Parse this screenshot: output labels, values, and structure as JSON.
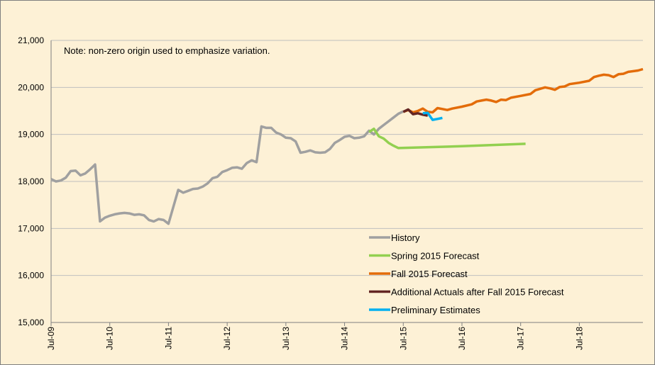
{
  "chart_data": {
    "type": "line",
    "annotation": "Note: non-zero origin used to emphasize variation.",
    "xlim": [
      0,
      121
    ],
    "xticks": [
      {
        "value": 0,
        "label": "Jul-09"
      },
      {
        "value": 12,
        "label": "Jul-10"
      },
      {
        "value": 24,
        "label": "Jul-11"
      },
      {
        "value": 36,
        "label": "Jul-12"
      },
      {
        "value": 48,
        "label": "Jul-13"
      },
      {
        "value": 60,
        "label": "Jul-14"
      },
      {
        "value": 72,
        "label": "Jul-15"
      },
      {
        "value": 84,
        "label": "Jul-16"
      },
      {
        "value": 96,
        "label": "Jul-17"
      },
      {
        "value": 108,
        "label": "Jul-18"
      }
    ],
    "ylim": [
      15000,
      21000
    ],
    "yticks": [
      {
        "value": 15000,
        "label": "15,000"
      },
      {
        "value": 16000,
        "label": "16,000"
      },
      {
        "value": 17000,
        "label": "17,000"
      },
      {
        "value": 18000,
        "label": "18,000"
      },
      {
        "value": 19000,
        "label": "19,000"
      },
      {
        "value": 20000,
        "label": "20,000"
      },
      {
        "value": 21000,
        "label": "21,000"
      }
    ],
    "grid": true,
    "legend": "lower right",
    "series": [
      {
        "name": "History",
        "color": "#a0a0a0",
        "x": [
          0,
          1,
          2,
          3,
          4,
          5,
          6,
          7,
          8,
          9,
          10,
          11,
          12,
          13,
          14,
          15,
          16,
          17,
          18,
          19,
          20,
          21,
          22,
          23,
          24,
          26,
          27,
          28,
          29,
          30,
          31,
          32,
          33,
          34,
          35,
          36,
          37,
          38,
          39,
          40,
          41,
          42,
          43,
          44,
          45,
          46,
          47,
          48,
          49,
          50,
          51,
          52,
          53,
          54,
          55,
          56,
          57,
          58,
          59,
          60,
          61,
          62,
          63,
          64,
          65,
          66,
          67,
          68,
          69,
          70,
          71,
          72
        ],
        "values": [
          18050,
          18000,
          18020,
          18080,
          18220,
          18230,
          18130,
          18170,
          18260,
          18360,
          17150,
          17230,
          17270,
          17300,
          17320,
          17330,
          17320,
          17290,
          17300,
          17280,
          17180,
          17150,
          17200,
          17180,
          17100,
          17820,
          17760,
          17800,
          17840,
          17850,
          17890,
          17960,
          18070,
          18100,
          18200,
          18240,
          18290,
          18300,
          18270,
          18390,
          18450,
          18410,
          19170,
          19140,
          19140,
          19040,
          19000,
          18930,
          18920,
          18850,
          18610,
          18630,
          18660,
          18620,
          18610,
          18620,
          18690,
          18820,
          18880,
          18950,
          18970,
          18920,
          18930,
          18960,
          19080,
          19000,
          19120,
          19200,
          19280,
          19360,
          19440,
          19490
        ]
      },
      {
        "name": "Spring 2015 Forecast",
        "color": "#92d050",
        "x": [
          65,
          66,
          67,
          68,
          69,
          70,
          71,
          84,
          97
        ],
        "values": [
          19050,
          19120,
          18960,
          18910,
          18820,
          18760,
          18710,
          18750,
          18800
        ]
      },
      {
        "name": "Fall 2015 Forecast",
        "color": "#e36c0a",
        "x": [
          72,
          73,
          74,
          75,
          76,
          77,
          78,
          79,
          80,
          81,
          82,
          84,
          86,
          87,
          88,
          89,
          90,
          91,
          92,
          93,
          94,
          96,
          98,
          99,
          100,
          101,
          102,
          103,
          104,
          105,
          106,
          108,
          110,
          111,
          112,
          113,
          114,
          115,
          116,
          117,
          118,
          120,
          121
        ],
        "values": [
          19480,
          19520,
          19470,
          19500,
          19550,
          19480,
          19470,
          19560,
          19540,
          19520,
          19550,
          19590,
          19640,
          19700,
          19720,
          19740,
          19720,
          19690,
          19740,
          19730,
          19780,
          19820,
          19860,
          19940,
          19970,
          20000,
          19980,
          19950,
          20010,
          20020,
          20070,
          20100,
          20140,
          20220,
          20250,
          20270,
          20260,
          20220,
          20280,
          20290,
          20330,
          20360,
          20390
        ]
      },
      {
        "name": "Additional Actuals after Fall 2015 Forecast",
        "color": "#632523",
        "x": [
          72,
          73,
          74,
          75,
          76,
          77
        ],
        "values": [
          19480,
          19530,
          19430,
          19450,
          19420,
          19400
        ]
      },
      {
        "name": "Preliminary Estimates",
        "color": "#00b0f0",
        "x": [
          76,
          77,
          78,
          79,
          80
        ],
        "values": [
          19450,
          19460,
          19310,
          19330,
          19350
        ]
      }
    ]
  }
}
